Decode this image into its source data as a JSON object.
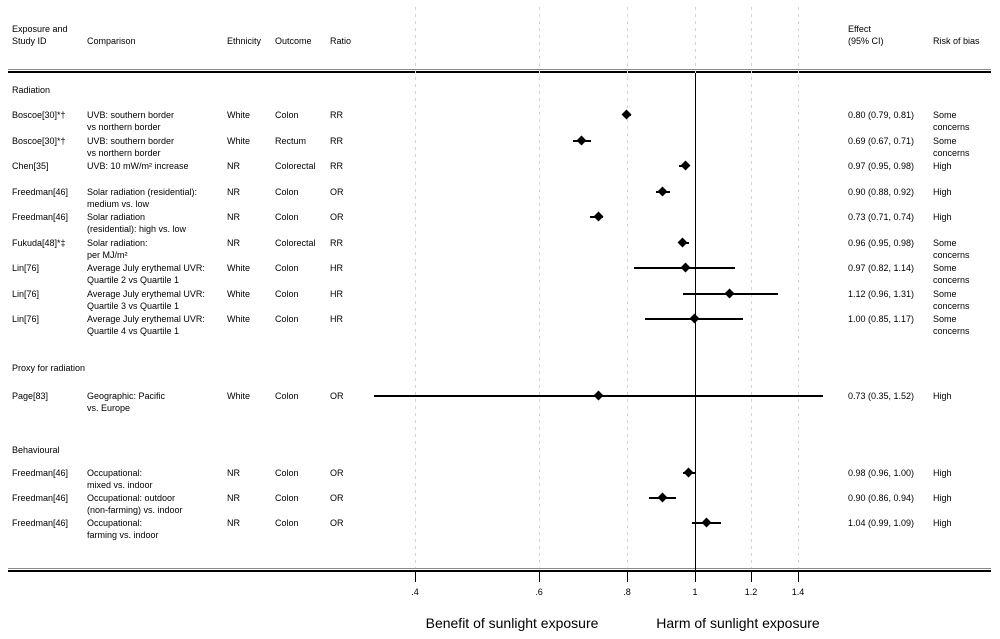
{
  "header": {
    "col_study": [
      "Exposure and",
      "Study ID"
    ],
    "col_comparison": "Comparison",
    "col_ethnicity": "Ethnicity",
    "col_outcome": "Outcome",
    "col_ratio": "Ratio",
    "col_effect": [
      "Effect",
      "(95% CI)"
    ],
    "col_rob": "Risk of bias"
  },
  "axis": {
    "tick_labels": [
      ".4",
      ".6",
      ".8",
      "1",
      "1.2",
      "1.4"
    ],
    "tick_values": [
      0.4,
      0.6,
      0.8,
      1.0,
      1.2,
      1.4
    ],
    "reference_value": 1,
    "caption_left": "Benefit of sunlight exposure",
    "caption_right": "Harm of sunlight exposure"
  },
  "colors": {
    "marker": "#000000",
    "ci_line": "#000000",
    "grid": "#d4d4d4",
    "reference_line": "#000000",
    "text": "#000000",
    "background": "#ffffff"
  },
  "chart_data": {
    "type": "scatter",
    "subtype": "forest-plot",
    "x_scale": "log",
    "x_ticks": [
      0.4,
      0.6,
      0.8,
      1.0,
      1.2,
      1.4
    ],
    "x_tick_labels": [
      ".4",
      ".6",
      ".8",
      "1",
      "1.2",
      "1.4"
    ],
    "reference_line": 1,
    "xlabel_left": "Benefit of sunlight exposure",
    "xlabel_right": "Harm of sunlight exposure",
    "grid": true,
    "sections": [
      {
        "label": "Radiation",
        "rows": [
          {
            "study": "Boscoe[30]*†",
            "comparison": [
              "UVB: southern border",
              "vs northern border"
            ],
            "ethnicity": "White",
            "outcome": "Colon",
            "ratio": "RR",
            "estimate": 0.8,
            "ci_low": 0.79,
            "ci_high": 0.81,
            "effect_label": "0.80 (0.79, 0.81)",
            "risk_of_bias": [
              "Some",
              "concerns"
            ]
          },
          {
            "study": "Boscoe[30]*†",
            "comparison": [
              "UVB: southern border",
              "vs northern border"
            ],
            "ethnicity": "White",
            "outcome": "Rectum",
            "ratio": "RR",
            "estimate": 0.69,
            "ci_low": 0.67,
            "ci_high": 0.71,
            "effect_label": "0.69 (0.67, 0.71)",
            "risk_of_bias": [
              "Some",
              "concerns"
            ]
          },
          {
            "study": "Chen[35]",
            "comparison": [
              "UVB: 10 mW/m² increase"
            ],
            "ethnicity": "NR",
            "outcome": "Colorectal",
            "ratio": "RR",
            "estimate": 0.97,
            "ci_low": 0.95,
            "ci_high": 0.98,
            "effect_label": "0.97 (0.95, 0.98)",
            "risk_of_bias": [
              "High"
            ]
          },
          {
            "study": "Freedman[46]",
            "comparison": [
              "Solar radiation (residential):",
              "medium vs. low"
            ],
            "ethnicity": "NR",
            "outcome": "Colon",
            "ratio": "OR",
            "estimate": 0.9,
            "ci_low": 0.88,
            "ci_high": 0.92,
            "effect_label": "0.90 (0.88, 0.92)",
            "risk_of_bias": [
              "High"
            ]
          },
          {
            "study": "Freedman[46]",
            "comparison": [
              "Solar radiation",
              "(residential): high vs. low"
            ],
            "ethnicity": "NR",
            "outcome": "Colon",
            "ratio": "OR",
            "estimate": 0.73,
            "ci_low": 0.71,
            "ci_high": 0.74,
            "effect_label": "0.73 (0.71, 0.74)",
            "risk_of_bias": [
              "High"
            ]
          },
          {
            "study": "Fukuda[48]*‡",
            "comparison": [
              "Solar radiation:",
              "per MJ/m²"
            ],
            "ethnicity": "NR",
            "outcome": "Colorectal",
            "ratio": "RR",
            "estimate": 0.96,
            "ci_low": 0.95,
            "ci_high": 0.98,
            "effect_label": "0.96 (0.95, 0.98)",
            "risk_of_bias": [
              "Some",
              "concerns"
            ]
          },
          {
            "study": "Lin[76]",
            "comparison": [
              "Average July erythemal UVR:",
              "Quartile 2 vs Quartile 1"
            ],
            "ethnicity": "White",
            "outcome": "Colon",
            "ratio": "HR",
            "estimate": 0.97,
            "ci_low": 0.82,
            "ci_high": 1.14,
            "effect_label": "0.97 (0.82, 1.14)",
            "risk_of_bias": [
              "Some",
              "concerns"
            ]
          },
          {
            "study": "Lin[76]",
            "comparison": [
              "Average July erythemal UVR:",
              "Quartile 3 vs Quartile 1"
            ],
            "ethnicity": "White",
            "outcome": "Colon",
            "ratio": "HR",
            "estimate": 1.12,
            "ci_low": 0.96,
            "ci_high": 1.31,
            "effect_label": "1.12 (0.96, 1.31)",
            "risk_of_bias": [
              "Some",
              "concerns"
            ]
          },
          {
            "study": "Lin[76]",
            "comparison": [
              "Average July erythemal UVR:",
              "Quartile 4 vs Quartile 1"
            ],
            "ethnicity": "White",
            "outcome": "Colon",
            "ratio": "HR",
            "estimate": 1.0,
            "ci_low": 0.85,
            "ci_high": 1.17,
            "effect_label": "1.00 (0.85, 1.17)",
            "risk_of_bias": [
              "Some",
              "concerns"
            ]
          }
        ]
      },
      {
        "label": "Proxy for radiation",
        "rows": [
          {
            "study": "Page[83]",
            "comparison": [
              "Geographic: Pacific",
              "vs. Europe"
            ],
            "ethnicity": "White",
            "outcome": "Colon",
            "ratio": "OR",
            "estimate": 0.73,
            "ci_low": 0.35,
            "ci_high": 1.52,
            "effect_label": "0.73 (0.35, 1.52)",
            "risk_of_bias": [
              "High"
            ]
          }
        ]
      },
      {
        "label": "Behavioural",
        "rows": [
          {
            "study": "Freedman[46]",
            "comparison": [
              "Occupational:",
              "mixed vs. indoor"
            ],
            "ethnicity": "NR",
            "outcome": "Colon",
            "ratio": "OR",
            "estimate": 0.98,
            "ci_low": 0.96,
            "ci_high": 1.0,
            "effect_label": "0.98 (0.96, 1.00)",
            "risk_of_bias": [
              "High"
            ]
          },
          {
            "study": "Freedman[46]",
            "comparison": [
              "Occupational: outdoor",
              "(non-farming) vs. indoor"
            ],
            "ethnicity": "NR",
            "outcome": "Colon",
            "ratio": "OR",
            "estimate": 0.9,
            "ci_low": 0.86,
            "ci_high": 0.94,
            "effect_label": "0.90 (0.86, 0.94)",
            "risk_of_bias": [
              "High"
            ]
          },
          {
            "study": "Freedman[46]",
            "comparison": [
              "Occupational:",
              "farming vs. indoor"
            ],
            "ethnicity": "NR",
            "outcome": "Colon",
            "ratio": "OR",
            "estimate": 1.04,
            "ci_low": 0.99,
            "ci_high": 1.09,
            "effect_label": "1.04 (0.99, 1.09)",
            "risk_of_bias": [
              "High"
            ]
          }
        ]
      }
    ]
  }
}
